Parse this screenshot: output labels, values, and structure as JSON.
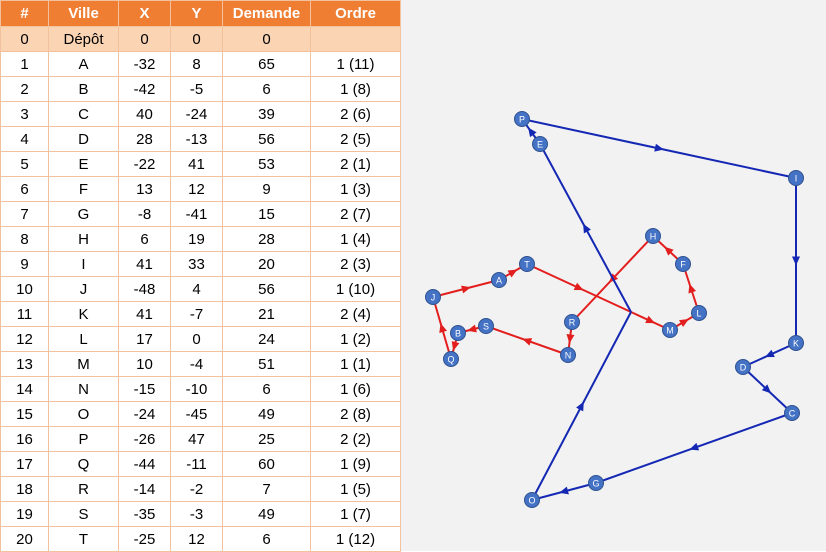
{
  "table": {
    "headers": [
      "#",
      "Ville",
      "X",
      "Y",
      "Demande",
      "Ordre"
    ],
    "rows": [
      [
        "0",
        "Dépôt",
        "0",
        "0",
        "0",
        ""
      ],
      [
        "1",
        "A",
        "-32",
        "8",
        "65",
        "1 (11)"
      ],
      [
        "2",
        "B",
        "-42",
        "-5",
        "6",
        "1 (8)"
      ],
      [
        "3",
        "C",
        "40",
        "-24",
        "39",
        "2 (6)"
      ],
      [
        "4",
        "D",
        "28",
        "-13",
        "56",
        "2 (5)"
      ],
      [
        "5",
        "E",
        "-22",
        "41",
        "53",
        "2 (1)"
      ],
      [
        "6",
        "F",
        "13",
        "12",
        "9",
        "1 (3)"
      ],
      [
        "7",
        "G",
        "-8",
        "-41",
        "15",
        "2 (7)"
      ],
      [
        "8",
        "H",
        "6",
        "19",
        "28",
        "1 (4)"
      ],
      [
        "9",
        "I",
        "41",
        "33",
        "20",
        "2 (3)"
      ],
      [
        "10",
        "J",
        "-48",
        "4",
        "56",
        "1 (10)"
      ],
      [
        "11",
        "K",
        "41",
        "-7",
        "21",
        "2 (4)"
      ],
      [
        "12",
        "L",
        "17",
        "0",
        "24",
        "1 (2)"
      ],
      [
        "13",
        "M",
        "10",
        "-4",
        "51",
        "1 (1)"
      ],
      [
        "14",
        "N",
        "-15",
        "-10",
        "6",
        "1 (6)"
      ],
      [
        "15",
        "O",
        "-24",
        "-45",
        "49",
        "2 (8)"
      ],
      [
        "16",
        "P",
        "-26",
        "47",
        "25",
        "2 (2)"
      ],
      [
        "17",
        "Q",
        "-44",
        "-11",
        "60",
        "1 (9)"
      ],
      [
        "18",
        "R",
        "-14",
        "-2",
        "7",
        "1 (5)"
      ],
      [
        "19",
        "S",
        "-35",
        "-3",
        "49",
        "1 (7)"
      ],
      [
        "20",
        "T",
        "-25",
        "12",
        "6",
        "1 (12)"
      ]
    ]
  },
  "map": {
    "depot_icon": "warehouse-icon",
    "nodes": [
      {
        "label": "A"
      },
      {
        "label": "B"
      },
      {
        "label": "C"
      },
      {
        "label": "D"
      },
      {
        "label": "E"
      },
      {
        "label": "F"
      },
      {
        "label": "G"
      },
      {
        "label": "H"
      },
      {
        "label": "I"
      },
      {
        "label": "J"
      },
      {
        "label": "K"
      },
      {
        "label": "L"
      },
      {
        "label": "M"
      },
      {
        "label": "N"
      },
      {
        "label": "O"
      },
      {
        "label": "P"
      },
      {
        "label": "Q"
      },
      {
        "label": "R"
      },
      {
        "label": "S"
      },
      {
        "label": "T"
      }
    ],
    "routes": [
      {
        "color": "#e31e1e",
        "stops": [
          "M",
          "L",
          "F",
          "H",
          "R",
          "N",
          "S",
          "B",
          "Q",
          "J",
          "A",
          "T"
        ]
      },
      {
        "color": "#1428b4",
        "stops": [
          "E",
          "P",
          "I",
          "K",
          "D",
          "C",
          "G",
          "O"
        ]
      }
    ],
    "colors": {
      "node_fill": "#4472c4",
      "node_stroke": "#2f528f",
      "background": "#f2f2f2"
    }
  }
}
